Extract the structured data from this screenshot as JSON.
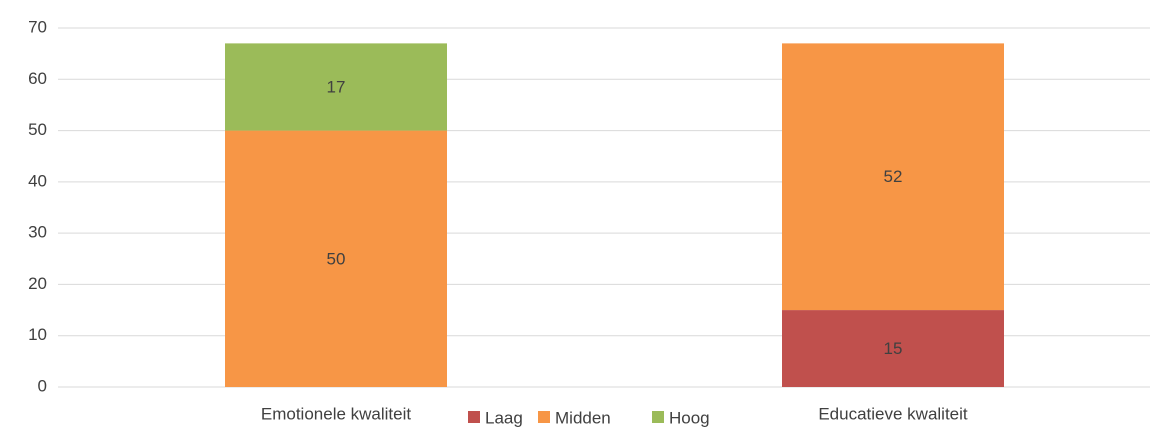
{
  "chart_data": {
    "type": "stacked_bar",
    "categories": [
      "Emotionele kwaliteit",
      "Educatieve kwaliteit"
    ],
    "series": [
      {
        "name": "Laag",
        "color": "#c0504d",
        "values": [
          null,
          15
        ]
      },
      {
        "name": "Midden",
        "color": "#f79646",
        "values": [
          50,
          52
        ]
      },
      {
        "name": "Hoog",
        "color": "#9bbb59",
        "values": [
          17,
          null
        ]
      }
    ],
    "ylim": [
      0,
      70
    ],
    "yticks": [
      0,
      10,
      20,
      30,
      40,
      50,
      60,
      70
    ],
    "grid": true,
    "legend": "bottom"
  }
}
